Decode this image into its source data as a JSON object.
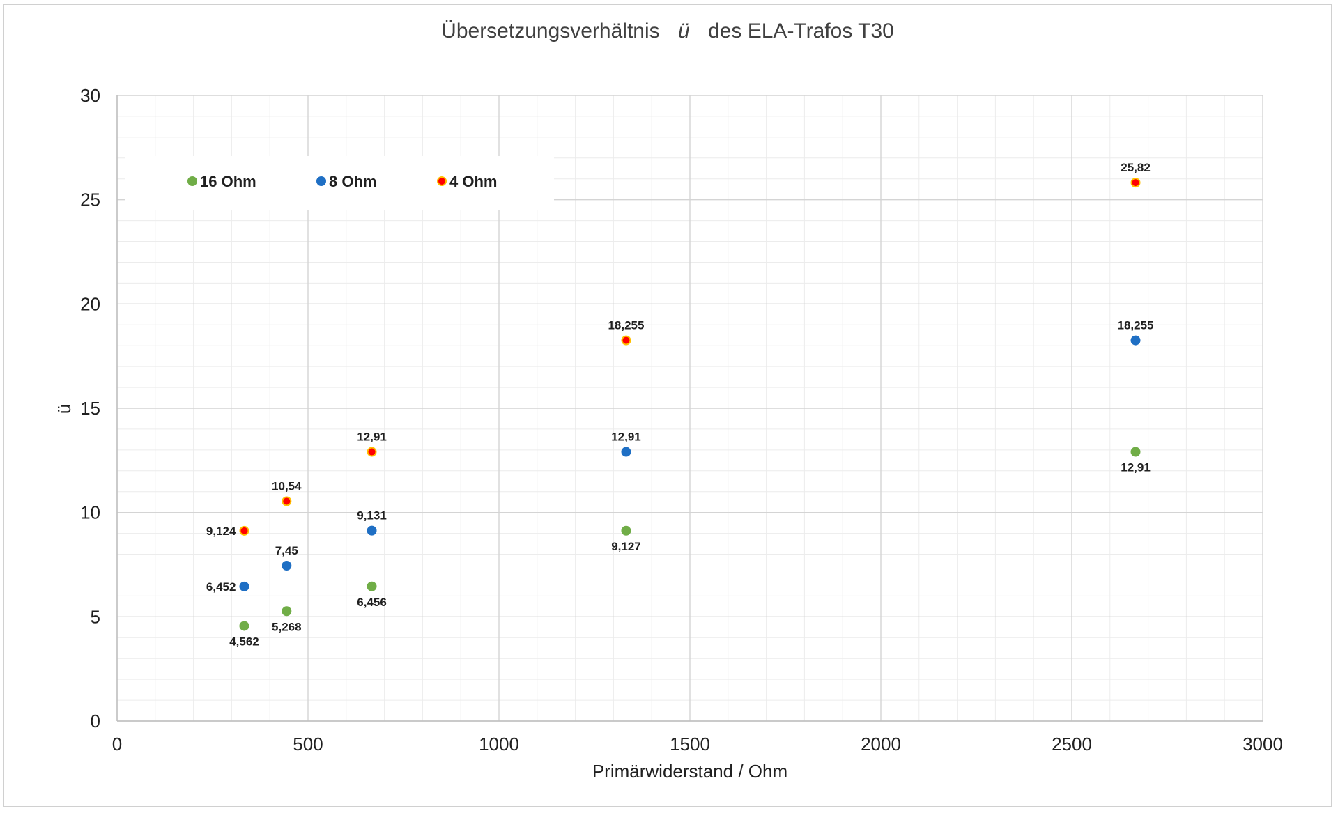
{
  "chart_data": {
    "type": "scatter",
    "title_main": "Übersetzungsverhältnis",
    "title_symbol": "ü",
    "title_rest": "des ELA-Trafos  T30",
    "xlabel": "Primärwiderstand / Ohm",
    "ylabel": "ü",
    "xlim": [
      0,
      3000
    ],
    "ylim": [
      0,
      30
    ],
    "x_ticks": [
      "0",
      "500",
      "1000",
      "1500",
      "2000",
      "2500",
      "3000"
    ],
    "y_ticks": [
      "0",
      "5",
      "10",
      "15",
      "20",
      "25",
      "30"
    ],
    "grid": true,
    "legend_position": "top-left",
    "series": [
      {
        "name": "16 Ohm",
        "color": "#70ad47",
        "edge_color": "#70ad47",
        "points": [
          {
            "x": 333,
            "y": 4.562,
            "label": "4,562",
            "label_pos": "below"
          },
          {
            "x": 444,
            "y": 5.268,
            "label": "5,268",
            "label_pos": "below"
          },
          {
            "x": 667,
            "y": 6.456,
            "label": "6,456",
            "label_pos": "below"
          },
          {
            "x": 1333,
            "y": 9.127,
            "label": "9,127",
            "label_pos": "below"
          },
          {
            "x": 2667,
            "y": 12.91,
            "label": "12,91",
            "label_pos": "below"
          }
        ]
      },
      {
        "name": "8 Ohm",
        "color": "#1f6fc4",
        "edge_color": "#1f6fc4",
        "points": [
          {
            "x": 333,
            "y": 6.452,
            "label": "6,452",
            "label_pos": "left"
          },
          {
            "x": 444,
            "y": 7.45,
            "label": "7,45",
            "label_pos": "above"
          },
          {
            "x": 667,
            "y": 9.131,
            "label": "9,131",
            "label_pos": "above"
          },
          {
            "x": 1333,
            "y": 12.91,
            "label": "12,91",
            "label_pos": "above"
          },
          {
            "x": 2667,
            "y": 18.255,
            "label": "18,255",
            "label_pos": "above"
          }
        ]
      },
      {
        "name": "4 Ohm",
        "color": "#ff0000",
        "edge_color": "#ffc000",
        "points": [
          {
            "x": 333,
            "y": 9.124,
            "label": "9,124",
            "label_pos": "left"
          },
          {
            "x": 444,
            "y": 10.54,
            "label": "10,54",
            "label_pos": "above"
          },
          {
            "x": 667,
            "y": 12.91,
            "label": "12,91",
            "label_pos": "above"
          },
          {
            "x": 1333,
            "y": 18.255,
            "label": "18,255",
            "label_pos": "above"
          },
          {
            "x": 2667,
            "y": 25.82,
            "label": "25,82",
            "label_pos": "above"
          }
        ]
      }
    ]
  }
}
